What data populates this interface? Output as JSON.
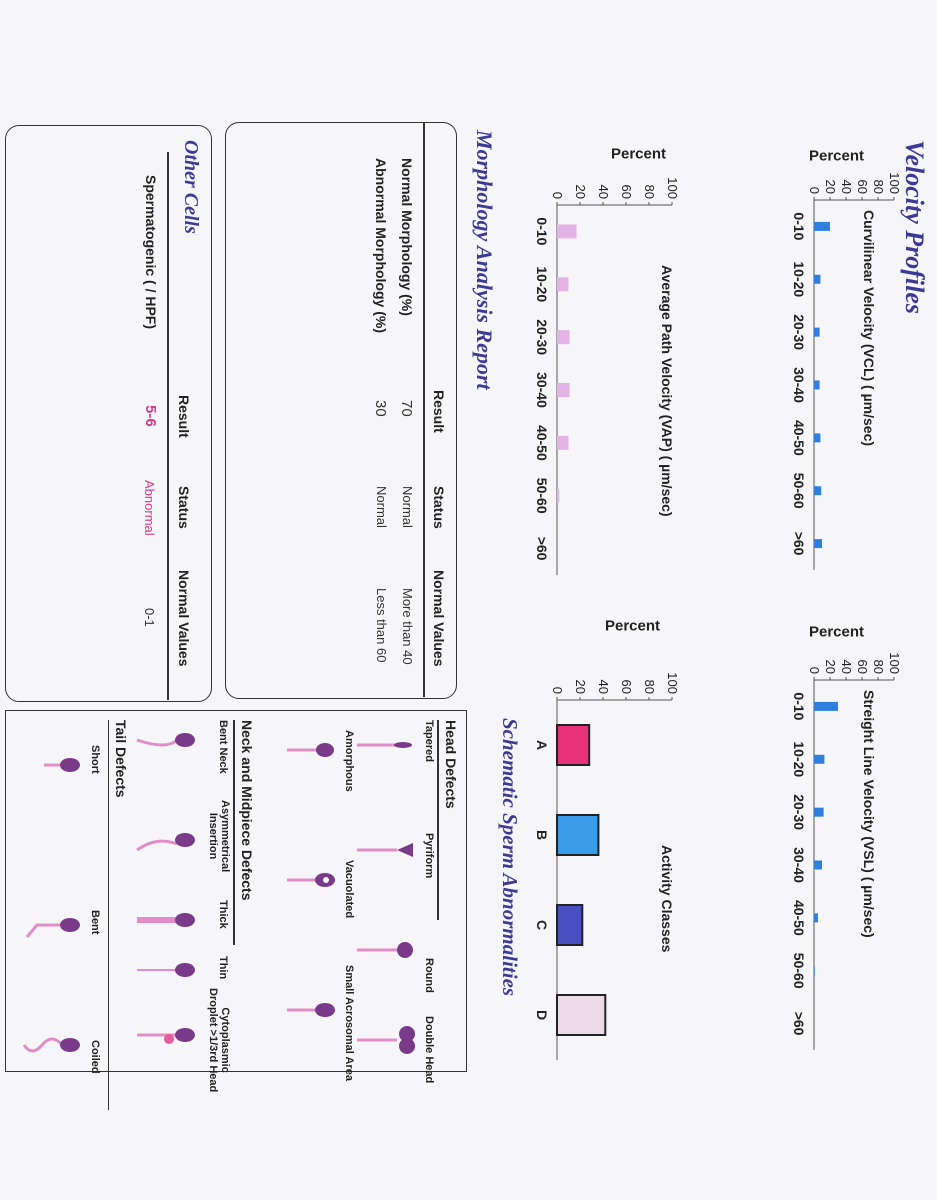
{
  "velocity": {
    "title": "Velocity Profiles",
    "ylabel": "Percent",
    "yticks": [
      "100",
      "80",
      "60",
      "40",
      "20",
      "0"
    ],
    "xticks": [
      "0-10",
      "10-20",
      "20-30",
      "30-40",
      "40-50",
      "50-60",
      ">60"
    ]
  },
  "chart_data": [
    {
      "type": "bar",
      "title": "Curvilinear Velocity (VCL) ( µm/sec)",
      "ylabel": "Percent",
      "categories": [
        "0-10",
        "10-20",
        "20-30",
        "30-40",
        "40-50",
        "50-60",
        ">60"
      ],
      "values": [
        20,
        8,
        7,
        7,
        8,
        9,
        10
      ],
      "ylim": [
        0,
        100
      ],
      "color": "#2f7fe0"
    },
    {
      "type": "bar",
      "title": "Streight Line Velocity (VSL) ( µm/sec)",
      "ylabel": "Percent",
      "categories": [
        "0-10",
        "10-20",
        "20-30",
        "30-40",
        "40-50",
        "50-60",
        ">60"
      ],
      "values": [
        30,
        13,
        12,
        10,
        5,
        1,
        0
      ],
      "ylim": [
        0,
        100
      ],
      "color": "#2f7fe0"
    },
    {
      "type": "bar",
      "title": "Average Path Velocity (VAP) ( µm/sec)",
      "ylabel": "Percent",
      "categories": [
        "0-10",
        "10-20",
        "20-30",
        "30-40",
        "40-50",
        "50-60",
        ">60"
      ],
      "values": [
        17,
        10,
        11,
        11,
        10,
        2,
        0
      ],
      "ylim": [
        0,
        100
      ],
      "color": "#e4b3e6"
    },
    {
      "type": "bar",
      "title": "Activity Classes",
      "ylabel": "Percent",
      "categories": [
        "A",
        "B",
        "C",
        "D"
      ],
      "values": [
        28,
        36,
        22,
        42
      ],
      "colors": [
        "#e8327a",
        "#3a9be8",
        "#4a4fc0",
        "#ecdbe7"
      ],
      "ylim": [
        0,
        100
      ]
    }
  ],
  "morphology": {
    "title": "Morphology Analysis Report",
    "headers": [
      "Result",
      "Status",
      "Normal Values"
    ],
    "rows": [
      {
        "label": "Normal Morphology (%)",
        "result": "70",
        "status": "Normal",
        "normal": "More than 40"
      },
      {
        "label": "Abnormal Morphology (%)",
        "result": "30",
        "status": "Normal",
        "normal": "Less than 60"
      }
    ]
  },
  "other_cells": {
    "title": "Other Cells",
    "headers": [
      "Result",
      "Status",
      "Normal Values"
    ],
    "rows": [
      {
        "label": "Spermatogenic  ( / HPF)",
        "result": "5-6",
        "status": "Abnormal",
        "normal": "0-1",
        "status_color": "#e0348a"
      }
    ]
  },
  "abnormalities": {
    "title": "Schematic Sperm Abnormalities",
    "head_title": "Head Defects",
    "head": [
      "Tapered",
      "Pyriform",
      "Round",
      "Double Head",
      "Amorphous",
      "Vacuolated",
      "Small Acrosomal Area"
    ],
    "neck_title": "Neck and Midpiece Defects",
    "neck": [
      "Bent Neck",
      "Asymmetrical\nInsertion",
      "Thick",
      "Thin",
      "Cytoplasmic\nDroplet >1/3rd Head"
    ],
    "tail_title": "Tail Defects",
    "tail": [
      "Short",
      "Bent",
      "Coiled"
    ]
  }
}
